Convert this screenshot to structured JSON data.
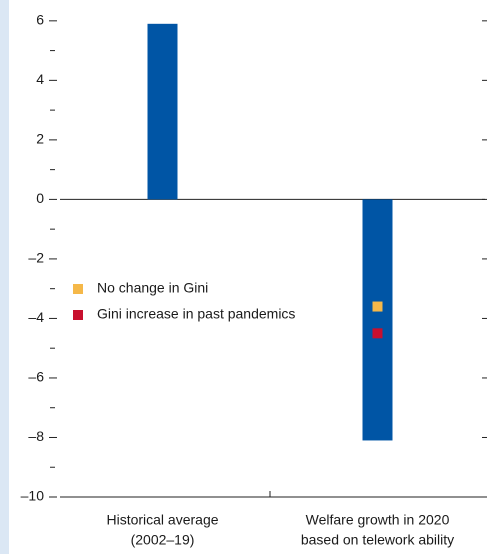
{
  "chart_data": {
    "type": "bar",
    "categories": [
      [
        "Historical average",
        "(2002–19)"
      ],
      [
        "Welfare growth in 2020",
        "based on telework ability"
      ]
    ],
    "series": [
      {
        "type": "bar",
        "values": [
          5.9,
          -8.1
        ],
        "color": "#0055a5"
      },
      {
        "type": "point",
        "name": "No change in Gini",
        "values": [
          null,
          -3.6
        ],
        "color": "#f5b849"
      },
      {
        "type": "point",
        "name": "Gini increase in past pandemics",
        "values": [
          null,
          -4.5
        ],
        "color": "#c8102e"
      }
    ],
    "ylim": [
      -10,
      6.7
    ],
    "yticks": [
      6,
      4,
      2,
      0,
      {
        "value": -2,
        "label": "–2"
      },
      {
        "value": -4,
        "label": "–4"
      },
      {
        "value": -6,
        "label": "–6"
      },
      {
        "value": -8,
        "label": "–8"
      },
      {
        "value": -10,
        "label": "–10"
      }
    ],
    "minor_yticks": [
      5,
      3,
      1,
      -1,
      -3,
      -5,
      -7,
      -9
    ],
    "legend": "left"
  }
}
